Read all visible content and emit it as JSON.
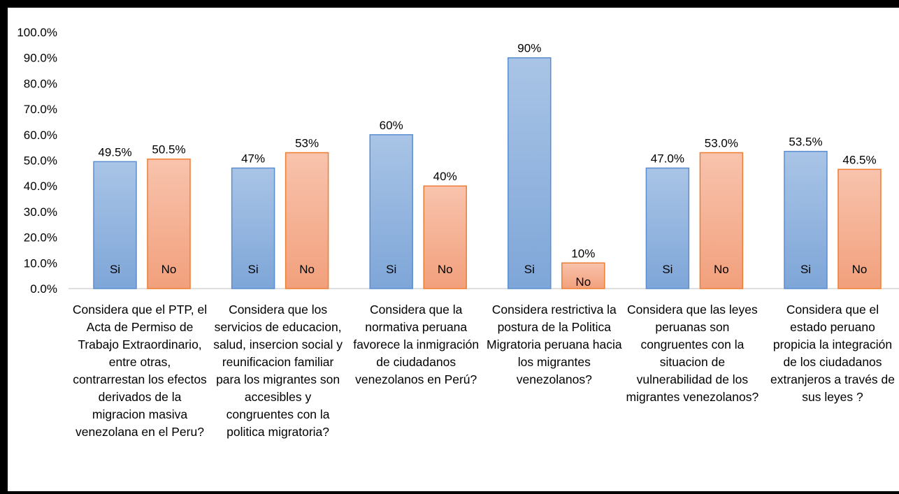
{
  "chart_data": {
    "type": "bar",
    "categories": [
      "Considera que el PTP, el Acta de Permiso de Trabajo Extraordinario, entre otras, contrarrestan los efectos derivados de la migracion masiva venezolana en el Peru?",
      "Considera que los servicios de educacion, salud, insercion social y reunificacion familiar para los migrantes son accesibles y congruentes con la politica migratoria?",
      "Considera que la normativa peruana favorece la inmigración de ciudadanos venezolanos en Perú?",
      "Considera restrictiva la postura de la Politica Migratoria peruana hacia los migrantes venezolanos?",
      "Considera que las leyes peruanas son congruentes con la situacion de vulnerabilidad de los migrantes venezolanos?",
      "Considera que el estado peruano propicia la integración de los ciudadanos extranjeros a través de sus leyes ?"
    ],
    "series": [
      {
        "name": "Si",
        "values": [
          49.5,
          47,
          60,
          90,
          47.0,
          53.5
        ],
        "labels": [
          "49.5%",
          "47%",
          "60%",
          "90%",
          "47.0%",
          "53.5%"
        ]
      },
      {
        "name": "No",
        "values": [
          50.5,
          53,
          40,
          10,
          53.0,
          46.5
        ],
        "labels": [
          "50.5%",
          "53%",
          "40%",
          "10%",
          "53.0%",
          "46.5%"
        ]
      }
    ],
    "yticks": [
      "0.0%",
      "10.0%",
      "20.0%",
      "30.0%",
      "40.0%",
      "50.0%",
      "60.0%",
      "70.0%",
      "80.0%",
      "90.0%",
      "100.0%"
    ],
    "ylim": [
      0,
      100
    ],
    "grid": false,
    "legend": "none",
    "colors": {
      "si_fill_top": "#a9c4e6",
      "si_fill_bottom": "#7ea6d8",
      "si_stroke": "#5b8ed0",
      "no_fill_top": "#f8c3ad",
      "no_fill_bottom": "#f2a07c",
      "no_stroke": "#ed7d31"
    }
  }
}
